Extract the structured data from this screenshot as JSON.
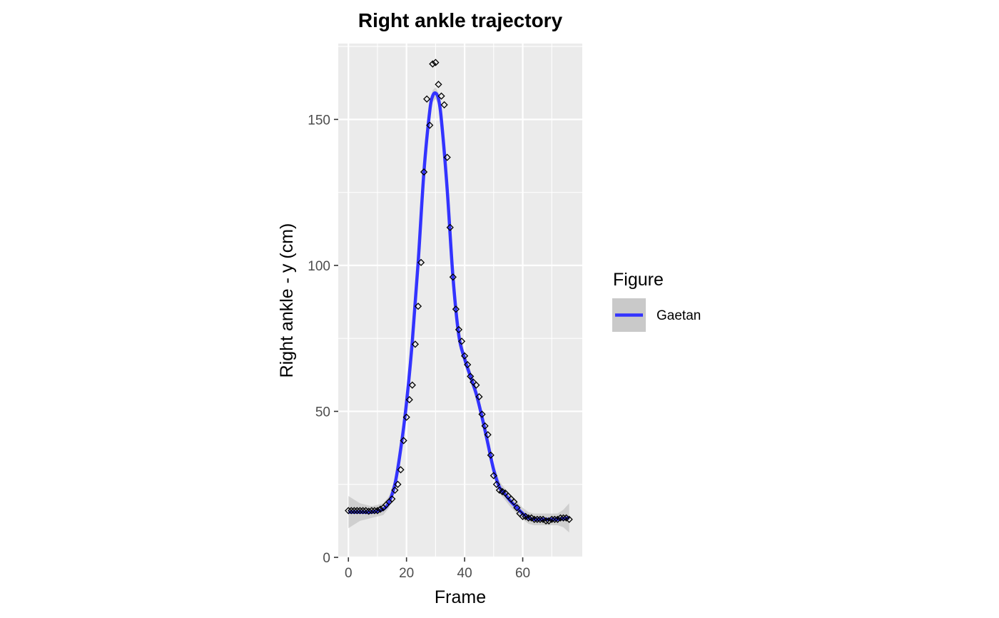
{
  "chart_data": {
    "type": "scatter",
    "title": "Right ankle trajectory",
    "xlabel": "Frame",
    "ylabel": "Right ankle - y (cm)",
    "xlim": [
      -3.5,
      80.5
    ],
    "ylim": [
      0,
      176
    ],
    "x_ticks": [
      0,
      20,
      40,
      60
    ],
    "y_ticks": [
      0,
      50,
      100,
      150
    ],
    "grid": true,
    "legend": {
      "title": "Figure",
      "position": "right",
      "entries": [
        "Gaetan"
      ]
    },
    "colors": {
      "line": "#3333ff",
      "ribbon": "#bdbdbd",
      "panel": "#ebebeb",
      "grid": "#ffffff",
      "points": "#000000"
    },
    "points": {
      "name": "",
      "x": [
        0,
        1,
        2,
        3,
        4,
        5,
        6,
        7,
        8,
        9,
        10,
        11,
        12,
        13,
        14,
        15,
        16,
        17,
        18,
        19,
        20,
        21,
        22,
        23,
        24,
        25,
        26,
        27,
        28,
        29,
        30,
        31,
        32,
        33,
        34,
        35,
        36,
        37,
        38,
        39,
        40,
        41,
        42,
        43,
        44,
        45,
        46,
        47,
        48,
        49,
        50,
        51,
        52,
        53,
        54,
        55,
        56,
        57,
        58,
        59,
        60,
        61,
        62,
        63,
        64,
        65,
        66,
        67,
        68,
        69,
        70,
        71,
        72,
        73,
        74,
        75,
        76
      ],
      "y": [
        16,
        16,
        16,
        16,
        16,
        16,
        16,
        15.8,
        16,
        16,
        16,
        16.5,
        17,
        18,
        19,
        20,
        23,
        25,
        30,
        40,
        48,
        54,
        59,
        73,
        86,
        101,
        132,
        157,
        148,
        169,
        169.5,
        162,
        158,
        155,
        137,
        113,
        96,
        85,
        78,
        74,
        69,
        66,
        62,
        60,
        59,
        55,
        49,
        45,
        42,
        35,
        28,
        25,
        23,
        22.5,
        22,
        21,
        20,
        19,
        17,
        15,
        14,
        14,
        13.5,
        13.5,
        13,
        13,
        13,
        13,
        12.5,
        12.5,
        13,
        13,
        13,
        13.5,
        13.5,
        13.5,
        13
      ]
    },
    "smooth": {
      "name": "Gaetan",
      "x": [
        0,
        4,
        8,
        12,
        14,
        16,
        18,
        20,
        22,
        24,
        26,
        28,
        29,
        30,
        31,
        32,
        34,
        36,
        38,
        40,
        42,
        44,
        46,
        48,
        50,
        52,
        54,
        56,
        58,
        60,
        62,
        64,
        66,
        68,
        70,
        72,
        74,
        76
      ],
      "y": [
        15.5,
        15.5,
        15.5,
        16.5,
        19,
        25,
        37,
        53,
        74,
        101,
        132,
        153,
        158,
        159,
        157,
        150,
        126,
        96,
        76,
        68,
        62,
        56,
        48,
        39,
        30,
        24,
        21.5,
        19,
        17,
        15,
        13.5,
        13,
        13,
        13,
        13,
        13,
        13.3,
        13.5
      ],
      "ribbon_halfwidth": [
        5.5,
        3,
        2,
        2,
        2,
        2,
        2,
        2,
        2,
        2,
        2,
        2,
        2,
        2,
        2,
        2,
        2,
        2,
        2,
        2,
        2,
        2,
        2,
        2,
        2,
        2,
        2,
        2,
        2,
        2,
        2,
        2,
        2,
        2,
        2,
        2,
        3,
        5
      ]
    }
  }
}
